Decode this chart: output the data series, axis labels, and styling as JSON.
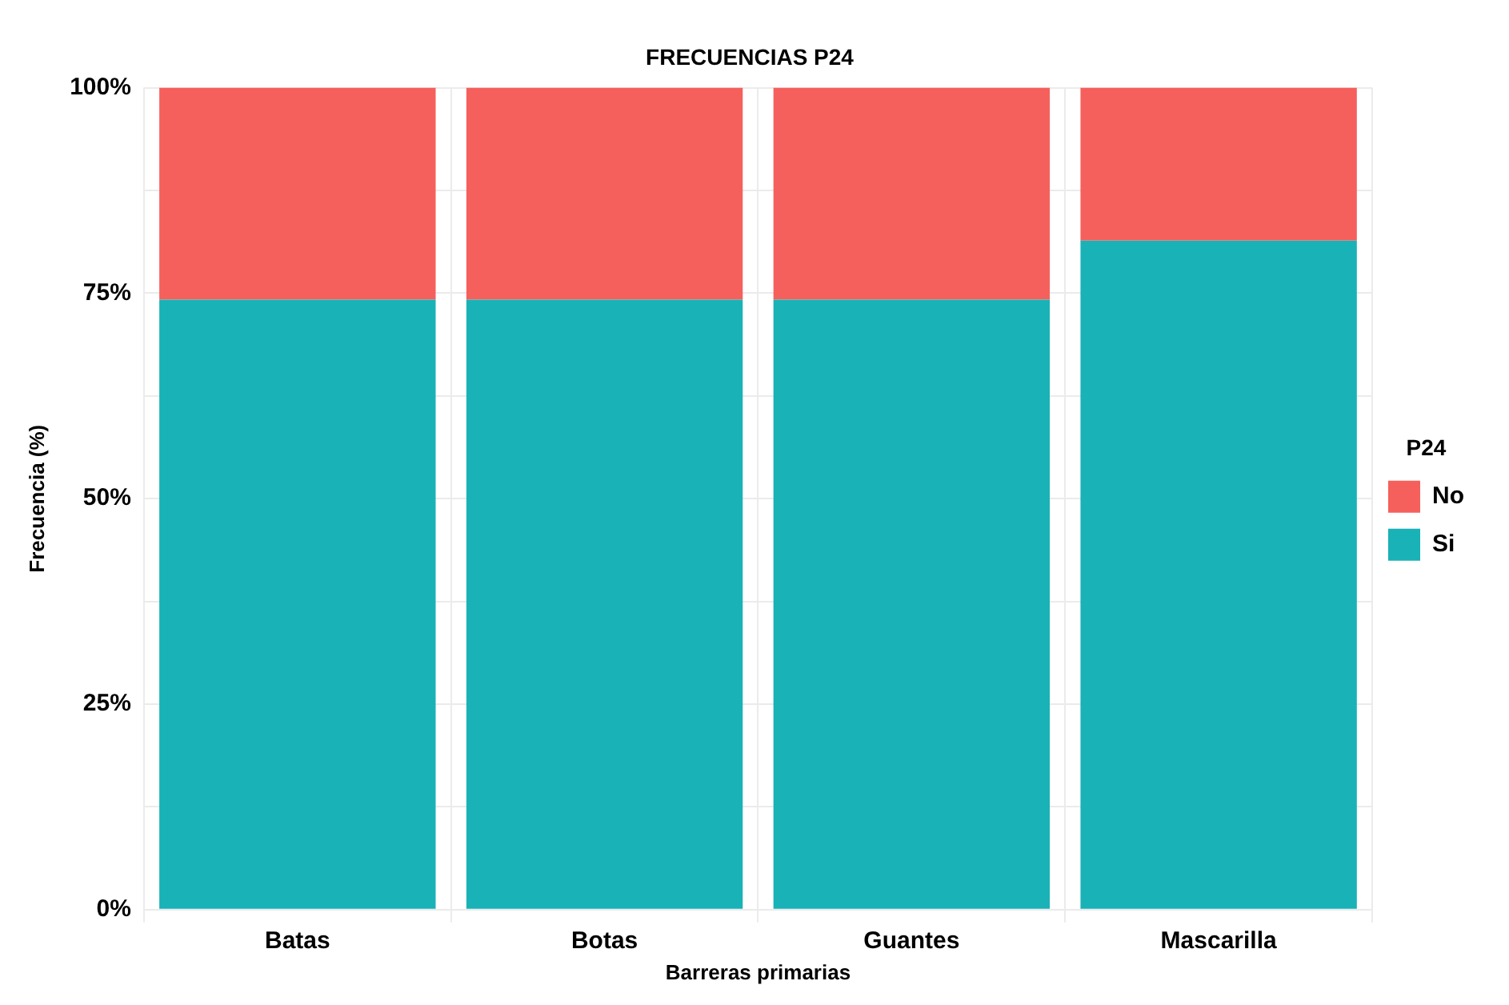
{
  "chart_data": {
    "type": "bar",
    "title": "FRECUENCIAS P24",
    "xlabel": "Barreras primarias",
    "ylabel": "Frecuencia (%)",
    "legend_title": "P24",
    "categories": [
      "Batas",
      "Botas",
      "Guantes",
      "Mascarilla"
    ],
    "stacked": true,
    "series": [
      {
        "name": "Si",
        "color": "#19b2b7",
        "values": [
          74.2,
          74.2,
          74.2,
          81.4
        ]
      },
      {
        "name": "No",
        "color": "#f5605c",
        "values": [
          25.8,
          25.8,
          25.8,
          18.6
        ]
      }
    ],
    "ylim": [
      0,
      100
    ],
    "yticks": [
      {
        "value": 0,
        "label": "0%"
      },
      {
        "value": 12.5,
        "label": null
      },
      {
        "value": 25,
        "label": "25%"
      },
      {
        "value": 37.5,
        "label": null
      },
      {
        "value": 50,
        "label": "50%"
      },
      {
        "value": 62.5,
        "label": null
      },
      {
        "value": 75,
        "label": "75%"
      },
      {
        "value": 87.5,
        "label": null
      },
      {
        "value": 100,
        "label": "100%"
      }
    ],
    "grid": true,
    "legend": "right"
  }
}
